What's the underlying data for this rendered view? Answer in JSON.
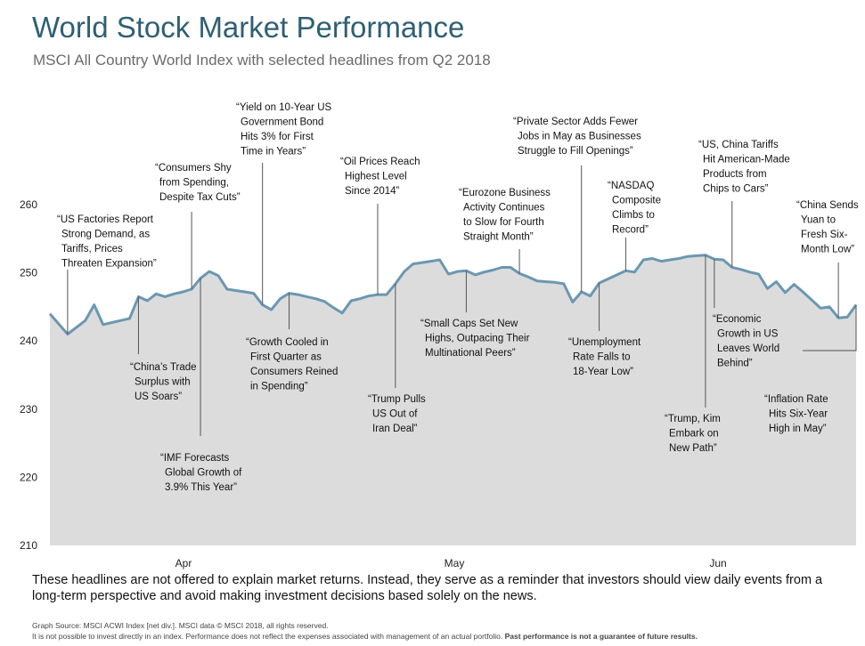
{
  "title": "World Stock Market Performance",
  "subtitle": "MSCI All Country World Index with selected headlines from Q2 2018",
  "note": "These headlines are not offered to explain market returns. Instead, they serve as a reminder that investors should view daily events from a long-term perspective and avoid making investment decisions based solely on the news.",
  "footer": {
    "line1": "Graph Source: MSCI ACWI Index [net div.]. MSCI data © MSCI 2018, all rights reserved.",
    "line2_prefix": "It is not possible to invest directly in an index. Performance does not reflect the expenses associated with management of an actual portfolio.",
    "line2_bold": "Past performance is not a guarantee of future results."
  },
  "chart_data": {
    "type": "area",
    "ylim": [
      210,
      260
    ],
    "yticks": [
      210,
      220,
      230,
      240,
      250,
      260
    ],
    "xtick_labels": [
      "Apr",
      "May",
      "Jun"
    ],
    "colors": {
      "line": "#6b97b1",
      "fill": "#dcdcdc",
      "leader": "#555555"
    },
    "series": [
      {
        "values": [
          244.0,
          242.5,
          241.0,
          242.0,
          243.0,
          245.3,
          242.4,
          242.7,
          243.0,
          243.3,
          246.5,
          245.9,
          246.9,
          246.5,
          246.9,
          247.2,
          247.6,
          249.2,
          250.2,
          249.6,
          247.6,
          247.4,
          247.2,
          247.0,
          245.3,
          244.6,
          246.2,
          247.0,
          246.8,
          246.5,
          246.2,
          245.8,
          244.9,
          244.1,
          245.9,
          246.2,
          246.6,
          246.8,
          246.8,
          248.4,
          250.2,
          251.3,
          251.5,
          251.7,
          251.9,
          249.8,
          250.2,
          250.3,
          249.7,
          250.1,
          250.4,
          250.8,
          250.8,
          249.9,
          249.4,
          248.8,
          248.7,
          248.6,
          248.4,
          245.7,
          247.2,
          246.6,
          248.5,
          249.1,
          249.7,
          250.3,
          250.1,
          251.9,
          252.1,
          251.7,
          251.9,
          252.1,
          252.4,
          252.5,
          252.6,
          252.0,
          251.9,
          250.8,
          250.5,
          250.1,
          249.8,
          247.7,
          248.7,
          247.1,
          248.3,
          247.2,
          246.0,
          244.8,
          245.0,
          243.4,
          243.5,
          245.3
        ]
      }
    ],
    "annotations": [
      {
        "index": 2,
        "lines": [
          "“US Factories Report",
          "Strong Demand, as",
          "Tariffs, Prices",
          "Threaten Expansion”"
        ]
      },
      {
        "index": 10,
        "lines": [
          "“China’s Trade",
          "Surplus with",
          "US Soars”"
        ]
      },
      {
        "index": 16,
        "lines": [
          "“Consumers Shy",
          "from Spending,",
          "Despite Tax Cuts”"
        ]
      },
      {
        "index": 17,
        "lines": [
          "“IMF Forecasts",
          "Global Growth of",
          "3.9% This Year”"
        ]
      },
      {
        "index": 24,
        "lines": [
          "“Yield on 10-Year US",
          "Government Bond",
          "Hits 3% for First",
          "Time in Years”"
        ]
      },
      {
        "index": 27,
        "lines": [
          "“Growth Cooled in",
          "First Quarter as",
          "Consumers Reined",
          "in Spending”"
        ]
      },
      {
        "index": 37,
        "lines": [
          "“Oil Prices Reach",
          "Highest Level",
          "Since 2014”"
        ]
      },
      {
        "index": 39,
        "lines": [
          "“Trump Pulls",
          "US Out of",
          "Iran Deal”"
        ]
      },
      {
        "index": 47,
        "lines": [
          "“Small Caps Set New",
          "Highs, Outpacing Their",
          "Multinational Peers”"
        ]
      },
      {
        "index": 53,
        "lines": [
          "“Eurozone Business",
          "Activity Continues",
          "to Slow for Fourth",
          "Straight Month”"
        ]
      },
      {
        "index": 60,
        "lines": [
          "“Private Sector Adds Fewer",
          "Jobs in May as Businesses",
          "Struggle to Fill Openings”"
        ]
      },
      {
        "index": 62,
        "lines": [
          "“Unemployment",
          "Rate Falls to",
          "18-Year Low”"
        ]
      },
      {
        "index": 65,
        "lines": [
          "“NASDAQ",
          "Composite",
          "Climbs to",
          "Record”"
        ]
      },
      {
        "index": 74,
        "lines": [
          "“Trump, Kim",
          "Embark on",
          "New Path”"
        ]
      },
      {
        "index": 75,
        "lines": [
          "“Economic",
          "Growth in US",
          "Leaves World",
          "Behind”"
        ]
      },
      {
        "index": 77,
        "lines": [
          "“US, China Tariffs",
          "Hit American-Made",
          "Products from",
          "Chips to Cars”"
        ]
      },
      {
        "index": 89,
        "lines": [
          "“China Sends",
          "Yuan to",
          "Fresh Six-",
          "Month Low”"
        ]
      },
      {
        "index": 91,
        "lines": [
          "“Inflation Rate",
          "Hits Six-Year",
          "High in May”"
        ]
      }
    ]
  }
}
